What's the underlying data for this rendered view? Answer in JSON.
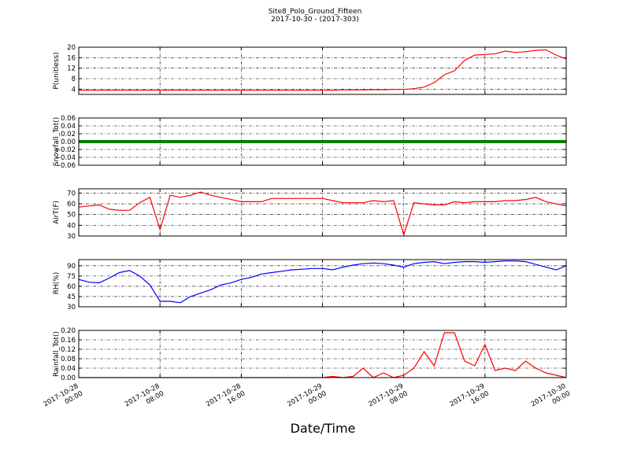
{
  "chart_data": {
    "type": "line",
    "title": "Site8_Polo_Ground_Fifteen",
    "subtitle": "2017-10-30 - (2017-303)",
    "xlabel": "Date/Time",
    "xlim": [
      "2017-10-28 00:00",
      "2017-10-30 00:00"
    ],
    "xticks": [
      "2017-10-28 00:00",
      "2017-10-28 08:00",
      "2017-10-28 16:00",
      "2017-10-29 00:00",
      "2017-10-29 08:00",
      "2017-10-29 16:00",
      "2017-10-30 00:00"
    ],
    "grid": true,
    "x": [
      "2017-10-28 00:00",
      "2017-10-28 01:00",
      "2017-10-28 02:00",
      "2017-10-28 03:00",
      "2017-10-28 04:00",
      "2017-10-28 05:00",
      "2017-10-28 06:00",
      "2017-10-28 07:00",
      "2017-10-28 08:00",
      "2017-10-28 09:00",
      "2017-10-28 10:00",
      "2017-10-28 11:00",
      "2017-10-28 12:00",
      "2017-10-28 13:00",
      "2017-10-28 14:00",
      "2017-10-28 15:00",
      "2017-10-28 16:00",
      "2017-10-28 17:00",
      "2017-10-28 18:00",
      "2017-10-28 19:00",
      "2017-10-28 20:00",
      "2017-10-28 21:00",
      "2017-10-28 22:00",
      "2017-10-28 23:00",
      "2017-10-29 00:00",
      "2017-10-29 01:00",
      "2017-10-29 02:00",
      "2017-10-29 03:00",
      "2017-10-29 04:00",
      "2017-10-29 05:00",
      "2017-10-29 06:00",
      "2017-10-29 07:00",
      "2017-10-29 08:00",
      "2017-10-29 09:00",
      "2017-10-29 10:00",
      "2017-10-29 11:00",
      "2017-10-29 12:00",
      "2017-10-29 13:00",
      "2017-10-29 14:00",
      "2017-10-29 15:00",
      "2017-10-29 16:00",
      "2017-10-29 17:00",
      "2017-10-29 18:00",
      "2017-10-29 19:00",
      "2017-10-29 20:00",
      "2017-10-29 21:00",
      "2017-10-29 22:00",
      "2017-10-29 23:00",
      "2017-10-30 00:00"
    ],
    "panels": [
      {
        "type": "line",
        "ylabel": "P(unitless)",
        "ylim": [
          2,
          20
        ],
        "yticks": [
          4,
          8,
          12,
          16,
          20
        ],
        "series": [
          {
            "name": "P",
            "color": "#ff0000",
            "values": [
              3.6,
              3.6,
              3.6,
              3.6,
              3.6,
              3.6,
              3.6,
              3.6,
              3.6,
              3.6,
              3.6,
              3.6,
              3.6,
              3.6,
              3.6,
              3.6,
              3.6,
              3.6,
              3.6,
              3.6,
              3.6,
              3.6,
              3.6,
              3.6,
              3.6,
              3.6,
              3.7,
              3.7,
              3.7,
              3.8,
              3.8,
              3.9,
              3.9,
              4.2,
              4.8,
              6.5,
              9.5,
              11,
              15,
              17,
              17.2,
              17.5,
              18.5,
              18,
              18.3,
              18.8,
              19,
              17,
              15.5
            ]
          }
        ]
      },
      {
        "type": "line",
        "ylabel": "Snowfall_Tot()",
        "ylim": [
          -0.06,
          0.06
        ],
        "yticks": [
          {
            "value": -0.06,
            "label": "−0.06"
          },
          {
            "value": -0.04,
            "label": "−0.04"
          },
          {
            "value": -0.02,
            "label": "−0.02"
          },
          {
            "value": 0,
            "label": "0.00"
          },
          0.02,
          0.04,
          0.06
        ],
        "series": [
          {
            "name": "Snowfall_Tot",
            "color": "#008000",
            "values": [
              0,
              0,
              0,
              0,
              0,
              0,
              0,
              0,
              0,
              0,
              0,
              0,
              0,
              0,
              0,
              0,
              0,
              0,
              0,
              0,
              0,
              0,
              0,
              0,
              0,
              0,
              0,
              0,
              0,
              0,
              0,
              0,
              0,
              0,
              0,
              0,
              0,
              0,
              0,
              0,
              0,
              0,
              0,
              0,
              0,
              0,
              0,
              0,
              0
            ]
          }
        ]
      },
      {
        "type": "line",
        "ylabel": "AirT(F)",
        "ylim": [
          30,
          74
        ],
        "yticks": [
          30,
          40,
          50,
          60,
          70
        ],
        "series": [
          {
            "name": "AirT",
            "color": "#ff0000",
            "values": [
              57,
              58,
              59,
              55,
              54,
              54,
              61,
              66,
              36,
              68,
              66,
              68,
              71,
              68,
              66,
              64,
              62,
              62,
              62,
              65,
              65,
              65,
              65,
              65,
              65,
              63,
              61,
              61,
              61,
              63,
              62,
              63,
              31,
              61,
              60,
              59,
              59,
              62,
              61,
              62,
              62,
              62,
              63,
              63,
              64,
              66,
              62,
              60,
              58
            ]
          }
        ]
      },
      {
        "type": "line",
        "ylabel": "RH(%)",
        "ylim": [
          30,
          99
        ],
        "yticks": [
          30,
          45,
          60,
          75,
          90
        ],
        "series": [
          {
            "name": "RH",
            "color": "#0000ff",
            "values": [
              70,
              66,
              65,
              72,
              80,
              83,
              75,
              62,
              38,
              38,
              36,
              45,
              50,
              55,
              62,
              65,
              70,
              73,
              78,
              80,
              82,
              84,
              85,
              86,
              86,
              84,
              88,
              91,
              93,
              94,
              93,
              91,
              88,
              93,
              95,
              96,
              93,
              95,
              96,
              96,
              95,
              96,
              97,
              97,
              96,
              92,
              88,
              84,
              90
            ]
          }
        ]
      },
      {
        "type": "line",
        "ylabel": "Rainfall_Tot()",
        "ylim": [
          0,
          0.2
        ],
        "yticks": [
          {
            "value": 0,
            "label": "0.00"
          },
          0.04,
          0.08,
          0.12,
          0.16,
          {
            "value": 0.2,
            "label": "0.20"
          }
        ],
        "series": [
          {
            "name": "Rainfall_Tot",
            "color": "#ff0000",
            "values": [
              0,
              0,
              0,
              0,
              0,
              0,
              0,
              0,
              0,
              0,
              0,
              0,
              0,
              0,
              0,
              0,
              0,
              0,
              0,
              0,
              0,
              0,
              0,
              0,
              0,
              0.005,
              0,
              0.005,
              0.04,
              0,
              0.02,
              0,
              0.01,
              0.04,
              0.11,
              0.05,
              0.19,
              0.19,
              0.07,
              0.05,
              0.14,
              0.03,
              0.04,
              0.03,
              0.07,
              0.04,
              0.02,
              0.01,
              0
            ]
          }
        ]
      }
    ]
  }
}
